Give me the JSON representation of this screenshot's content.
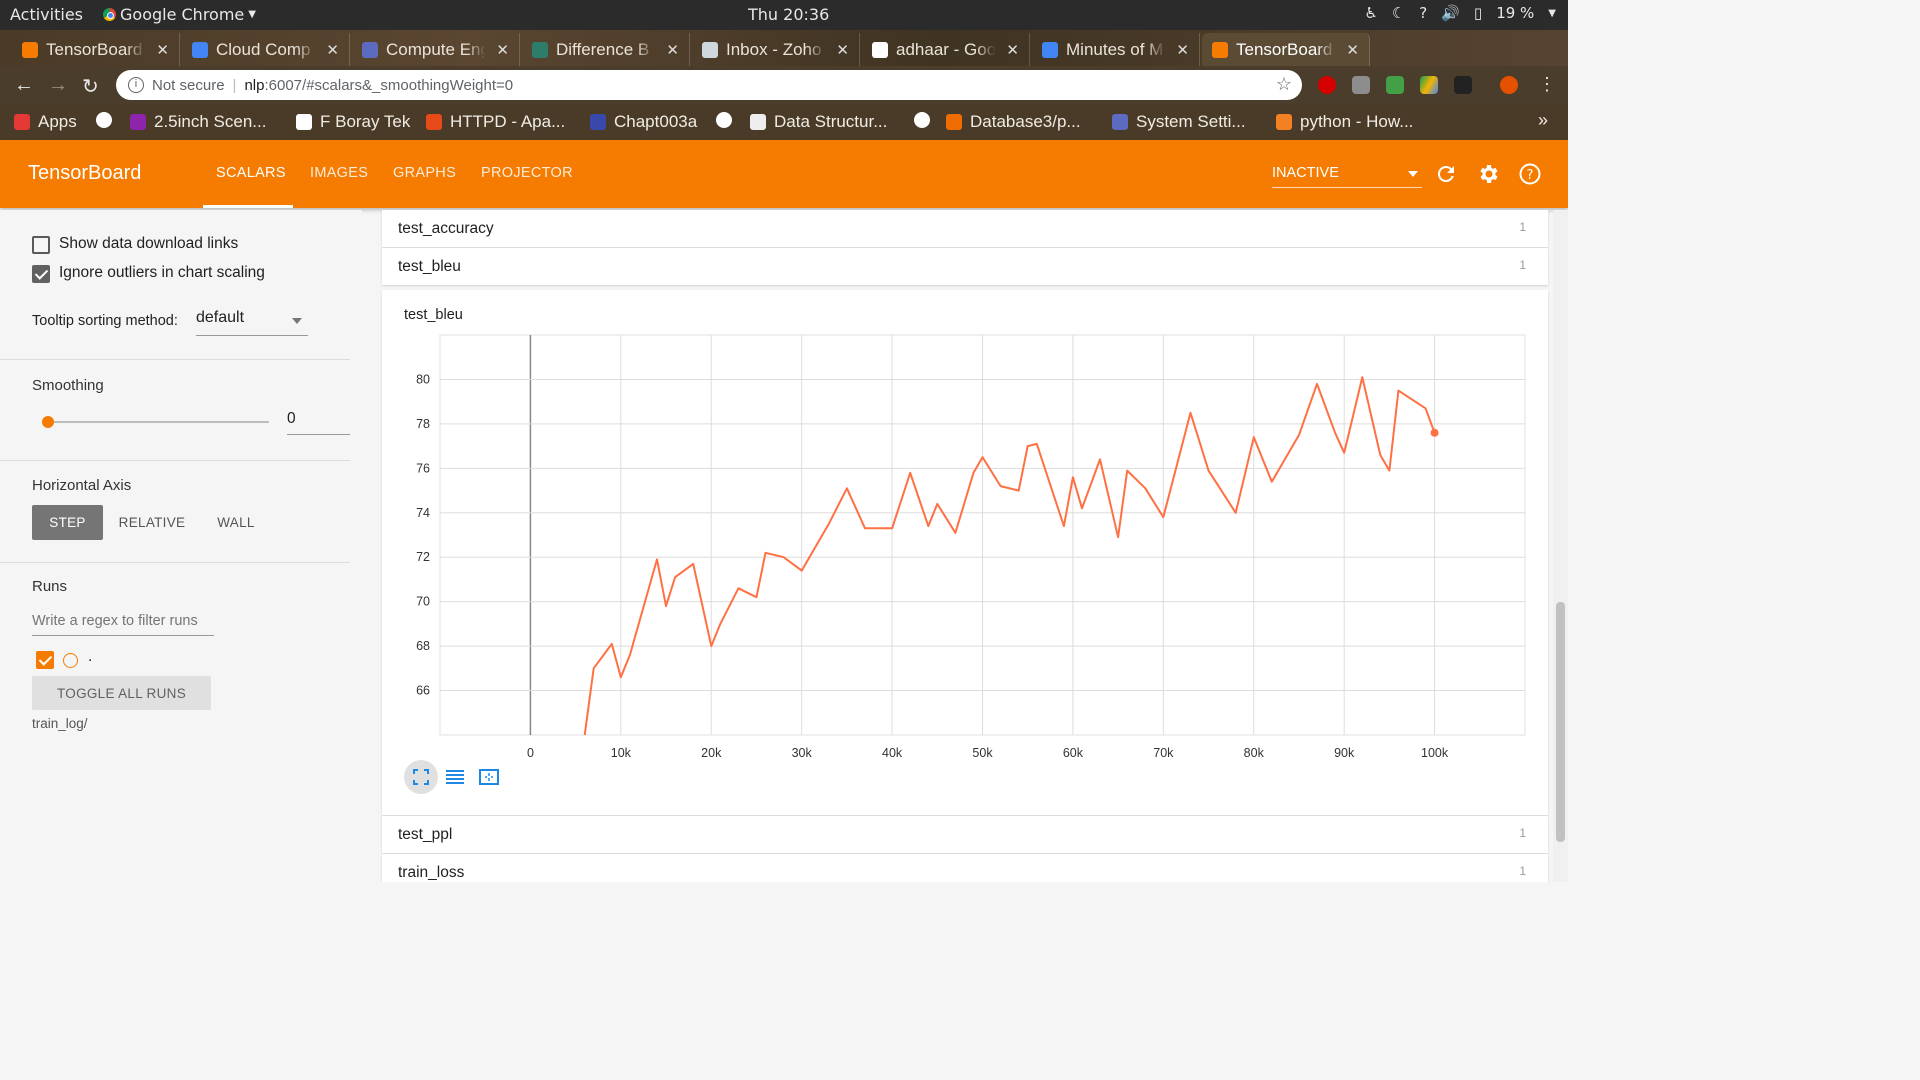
{
  "os_bar": {
    "activities": "Activities",
    "app_name": "Google Chrome",
    "clock": "Thu 20:36",
    "battery": "19 %"
  },
  "tabs": [
    {
      "title": "TensorBoard",
      "color": "#f57c00"
    },
    {
      "title": "Cloud Comp",
      "color": "#4285f4"
    },
    {
      "title": "Compute Eng",
      "color": "#5c6bc0"
    },
    {
      "title": "Difference B",
      "color": "#2e7d6b"
    },
    {
      "title": "Inbox - Zoho",
      "color": "#cfd8dc"
    },
    {
      "title": "adhaar - Goo",
      "color": "#ffffff"
    },
    {
      "title": "Minutes of M",
      "color": "#4285f4"
    },
    {
      "title": "TensorBoard",
      "color": "#f57c00"
    }
  ],
  "address": {
    "security": "Not secure",
    "host": "nlp",
    "path": ":6007/#scalars&_smoothingWeight=0"
  },
  "bookmarks": [
    {
      "label": "Apps",
      "color": "#e53935"
    },
    {
      "label": "",
      "color": "#ffffff"
    },
    {
      "label": "2.5inch Scen...",
      "color": "#8e24aa"
    },
    {
      "label": "F Boray Tek",
      "color": "#ffffff"
    },
    {
      "label": "HTTPD - Apa...",
      "color": "#e64a19"
    },
    {
      "label": "Chapt003a",
      "color": "#3949ab"
    },
    {
      "label": "",
      "color": "#ffffff"
    },
    {
      "label": "Data Structur...",
      "color": "#eeeeee"
    },
    {
      "label": "",
      "color": "#ffffff"
    },
    {
      "label": "Database3/p...",
      "color": "#ef6c00"
    },
    {
      "label": "System Setti...",
      "color": "#5c6bc0"
    },
    {
      "label": "python - How...",
      "color": "#f48024"
    }
  ],
  "header": {
    "brand": "TensorBoard",
    "tabs": [
      "SCALARS",
      "IMAGES",
      "GRAPHS",
      "PROJECTOR"
    ],
    "status": "INACTIVE",
    "accent": "#f57c00"
  },
  "sidebar": {
    "show_download": "Show data download links",
    "ignore_outliers": "Ignore outliers in chart scaling",
    "tooltip_label": "Tooltip sorting method:",
    "tooltip_value": "default",
    "smoothing_title": "Smoothing",
    "smoothing_value": "0",
    "smoothing_fraction": 0,
    "haxis_title": "Horizontal Axis",
    "haxis_options": [
      "STEP",
      "RELATIVE",
      "WALL"
    ],
    "runs_title": "Runs",
    "runs_filter_placeholder": "Write a regex to filter runs",
    "run_name": ".",
    "toggle_all": "TOGGLE ALL RUNS",
    "logdir": "train_log/"
  },
  "cards": [
    {
      "name": "test_accuracy",
      "count": "1"
    },
    {
      "name": "test_bleu",
      "count": "1"
    },
    {
      "name": "test_ppl",
      "count": "1"
    },
    {
      "name": "train_loss",
      "count": "1"
    }
  ],
  "chart_data": {
    "type": "line",
    "title": "test_bleu",
    "xlabel": "",
    "ylabel": "",
    "xlim": [
      -10000,
      110000
    ],
    "ylim": [
      64,
      82
    ],
    "xticks": [
      "0",
      "10k",
      "20k",
      "30k",
      "40k",
      "50k",
      "60k",
      "70k",
      "80k",
      "90k",
      "100k"
    ],
    "yticks": [
      "66",
      "68",
      "70",
      "72",
      "74",
      "76",
      "78",
      "80"
    ],
    "grid": true,
    "series": [
      {
        "color": "#ff7043",
        "x": [
          6000,
          7000,
          9000,
          10000,
          11000,
          14000,
          15000,
          16000,
          18000,
          20000,
          21000,
          23000,
          25000,
          26000,
          28000,
          30000,
          33000,
          35000,
          37000,
          40000,
          42000,
          44000,
          45000,
          47000,
          49000,
          50000,
          52000,
          54000,
          55000,
          56000,
          59000,
          60000,
          61000,
          63000,
          65000,
          66000,
          68000,
          70000,
          73000,
          75000,
          78000,
          80000,
          82000,
          85000,
          87000,
          89000,
          90000,
          92000,
          94000,
          95000,
          96000,
          99000,
          100000
        ],
        "y": [
          64,
          67.0,
          68.1,
          66.6,
          67.6,
          71.9,
          69.8,
          71.1,
          71.7,
          68.0,
          69.0,
          70.6,
          70.2,
          72.2,
          72.0,
          71.4,
          73.5,
          75.1,
          73.3,
          73.3,
          75.8,
          73.4,
          74.4,
          73.1,
          75.8,
          76.5,
          75.2,
          75.0,
          77.0,
          77.1,
          73.4,
          75.6,
          74.2,
          76.4,
          72.9,
          75.9,
          75.1,
          73.8,
          78.5,
          75.9,
          74.0,
          77.4,
          75.4,
          77.5,
          79.8,
          77.6,
          76.7,
          80.1,
          76.6,
          75.9,
          79.5,
          78.7,
          77.6
        ]
      }
    ]
  }
}
